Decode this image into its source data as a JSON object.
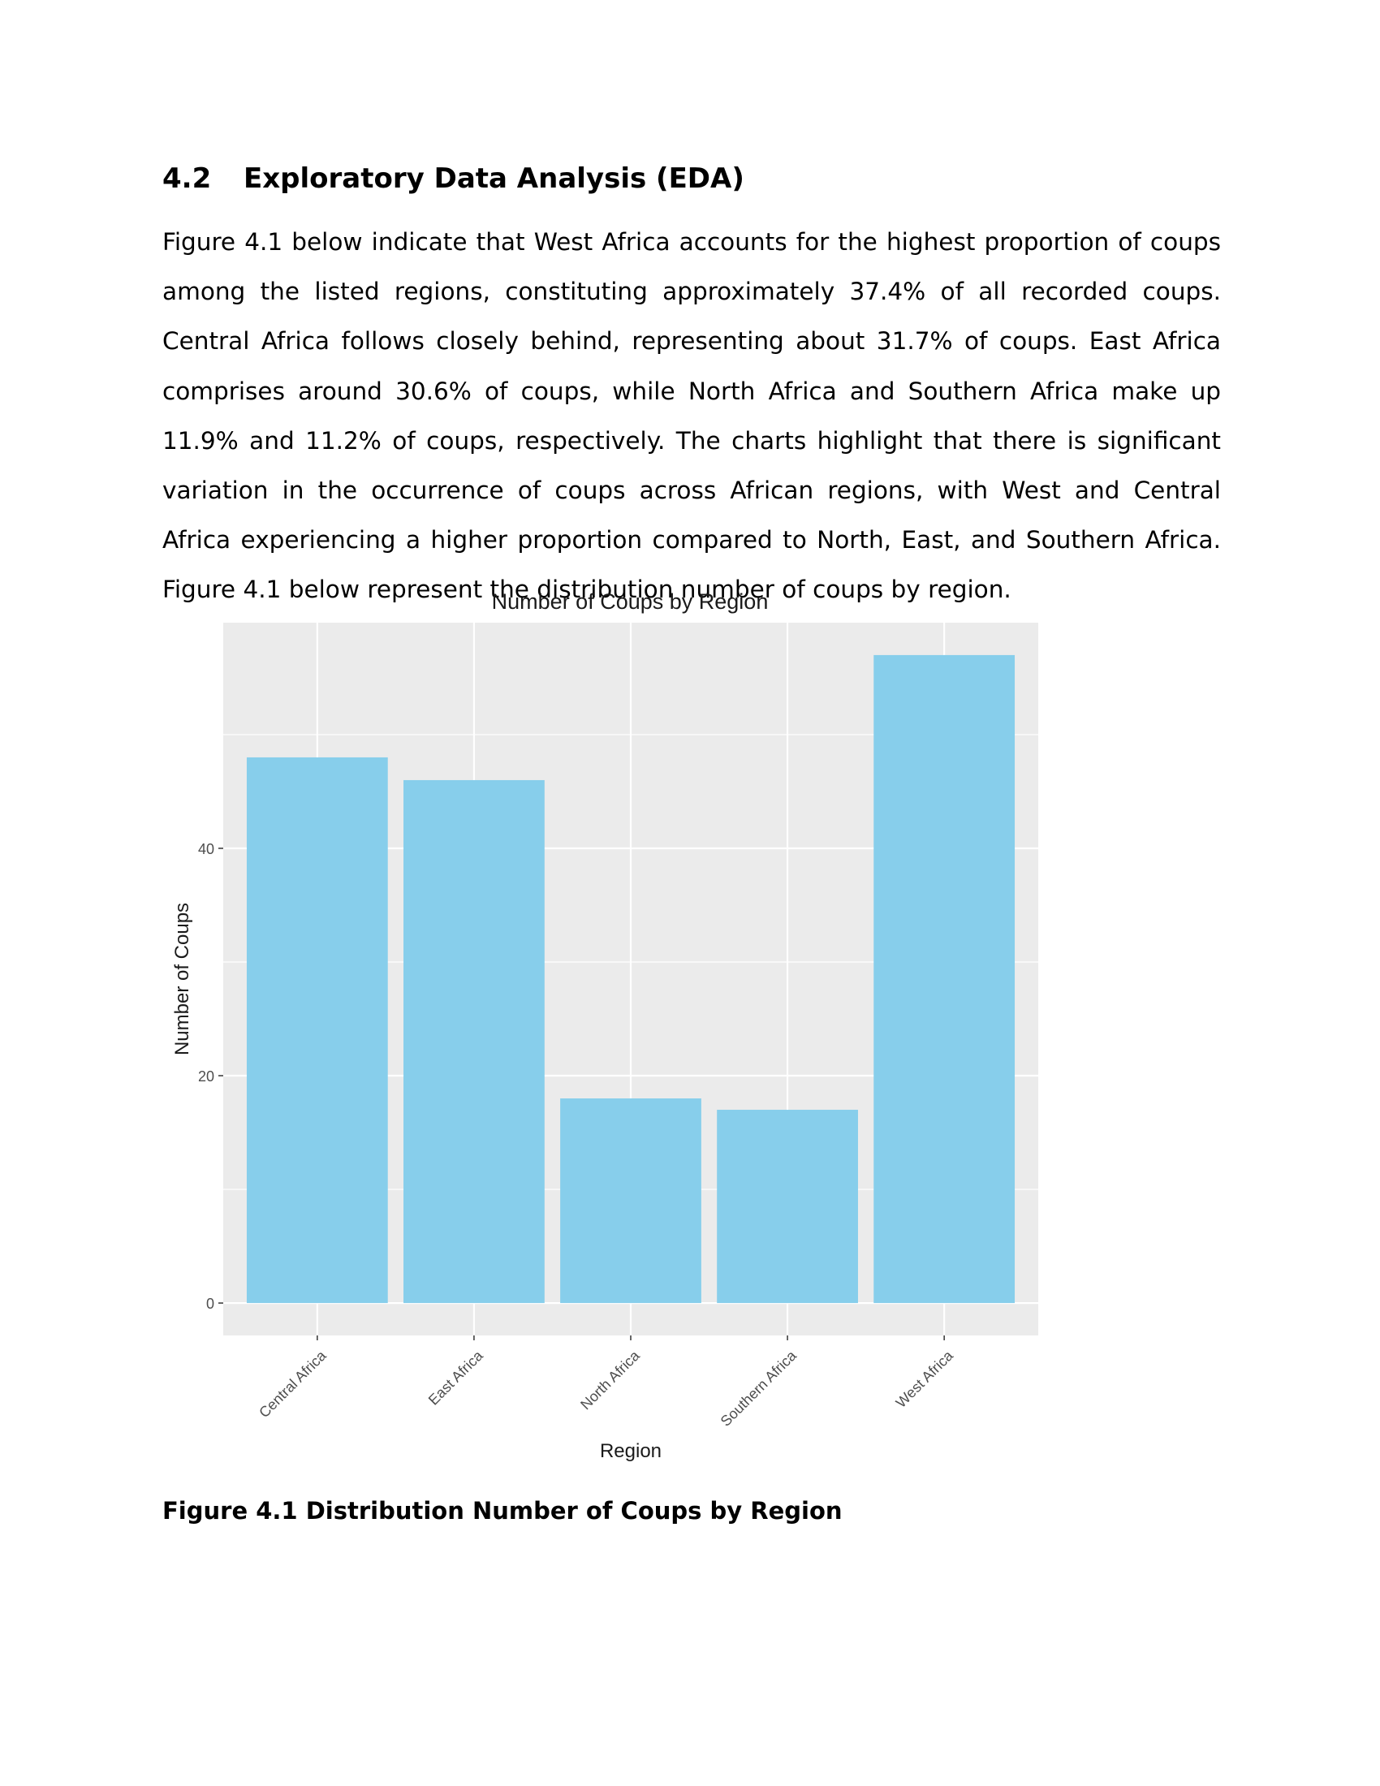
{
  "document": {
    "section_number": "4.2",
    "section_title": "Exploratory Data Analysis (EDA)",
    "paragraph": "Figure 4.1 below indicate that West Africa accounts for the highest proportion of coups among the listed regions, constituting approximately 37.4% of all recorded coups. Central Africa follows closely behind, representing about 31.7% of coups. East Africa comprises around 30.6% of coups, while North Africa and Southern Africa make up 11.9% and 11.2% of coups, respectively. The charts highlight that there is significant variation in the occurrence of coups across African regions, with West and Central Africa experiencing a higher proportion compared to North, East, and Southern Africa. Figure 4.1 below represent the distribution number of coups by region.",
    "caption": "Figure 4.1 Distribution Number of Coups by Region"
  },
  "chart_data": {
    "type": "bar",
    "title": "Number of Coups by Region",
    "xlabel": "Region",
    "ylabel": "Number of Coups",
    "categories": [
      "Central Africa",
      "East Africa",
      "North Africa",
      "Southern Africa",
      "West Africa"
    ],
    "values": [
      48,
      46,
      18,
      17,
      57
    ],
    "ylim": [
      -2.85,
      59.85
    ],
    "yticks": [
      0,
      20,
      40
    ],
    "ytick_labels": [
      "0",
      "20",
      "40"
    ],
    "minor_gridlines": [
      10,
      30,
      50
    ],
    "grid": true,
    "bar_color": "#87CEEB",
    "panel_color": "#EBEBEB",
    "grid_color": "#FFFFFF",
    "text_color": "#4D4D4D"
  }
}
